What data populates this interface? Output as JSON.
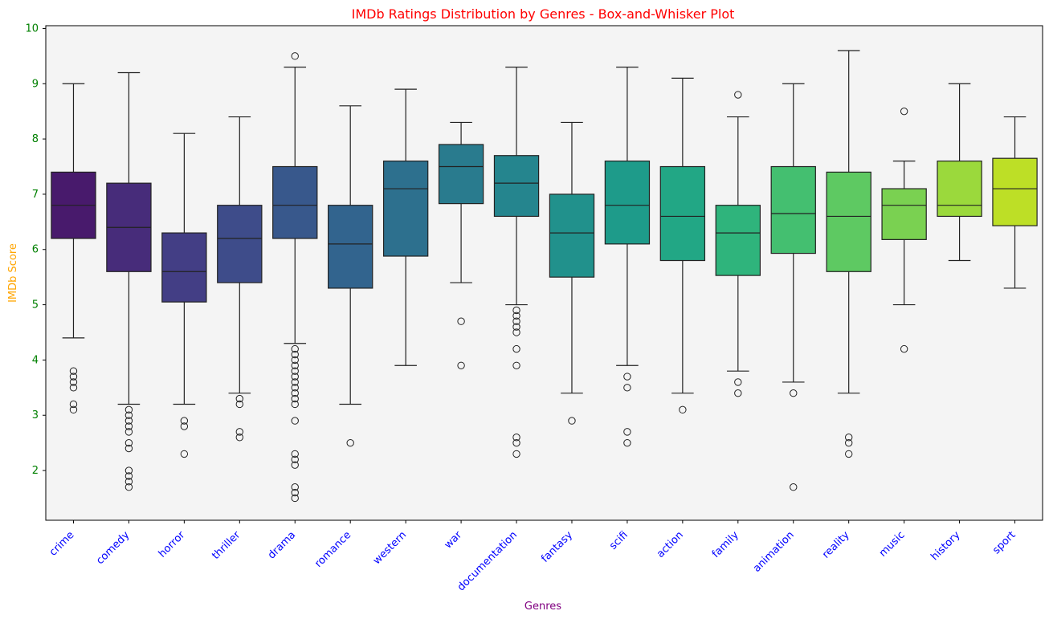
{
  "chart_data": {
    "type": "boxplot",
    "title": "IMDb Ratings Distribution by Genres - Box-and-Whisker Plot",
    "xlabel": "Genres",
    "ylabel": "IMDb Score",
    "ylim": [
      1.1,
      10.05
    ],
    "yticks": [
      2,
      3,
      4,
      5,
      6,
      7,
      8,
      9,
      10
    ],
    "grid": false,
    "colors": {
      "title": "#ff0000",
      "xlabel": "#800080",
      "ylabel": "#ffa500",
      "xticks": "#0000ff",
      "yticks": "#008000",
      "plot_bg": "#f4f4f4",
      "palette": "viridis"
    },
    "categories": [
      "crime",
      "comedy",
      "horror",
      "thriller",
      "drama",
      "romance",
      "western",
      "war",
      "documentation",
      "fantasy",
      "scifi",
      "action",
      "family",
      "animation",
      "reality",
      "music",
      "history",
      "sport"
    ],
    "boxes": [
      {
        "genre": "crime",
        "color": "#481a6c",
        "whislo": 4.4,
        "q1": 6.2,
        "med": 6.8,
        "q3": 7.4,
        "whishi": 9.0,
        "fliers": [
          3.1,
          3.2,
          3.5,
          3.6,
          3.7,
          3.8
        ]
      },
      {
        "genre": "comedy",
        "color": "#472c7a",
        "whislo": 3.2,
        "q1": 5.6,
        "med": 6.4,
        "q3": 7.2,
        "whishi": 9.2,
        "fliers": [
          1.7,
          1.8,
          1.9,
          2.0,
          2.4,
          2.5,
          2.7,
          2.8,
          2.9,
          3.0,
          3.1
        ]
      },
      {
        "genre": "horror",
        "color": "#433e85",
        "whislo": 3.2,
        "q1": 5.05,
        "med": 5.6,
        "q3": 6.3,
        "whishi": 8.1,
        "fliers": [
          2.3,
          2.8,
          2.9
        ]
      },
      {
        "genre": "thriller",
        "color": "#3e4c8a",
        "whislo": 3.4,
        "q1": 5.4,
        "med": 6.2,
        "q3": 6.8,
        "whishi": 8.4,
        "fliers": [
          2.6,
          2.7,
          3.2,
          3.3
        ]
      },
      {
        "genre": "drama",
        "color": "#38588c",
        "whislo": 4.3,
        "q1": 6.2,
        "med": 6.8,
        "q3": 7.5,
        "whishi": 9.3,
        "fliers": [
          1.5,
          1.6,
          1.7,
          2.1,
          2.2,
          2.3,
          2.9,
          3.2,
          3.3,
          3.4,
          3.5,
          3.6,
          3.7,
          3.8,
          3.9,
          4.0,
          4.1,
          4.2,
          9.5
        ]
      },
      {
        "genre": "romance",
        "color": "#32648e",
        "whislo": 3.2,
        "q1": 5.3,
        "med": 6.1,
        "q3": 6.8,
        "whishi": 8.6,
        "fliers": [
          2.5
        ]
      },
      {
        "genre": "western",
        "color": "#2d708e",
        "whislo": 3.9,
        "q1": 5.88,
        "med": 7.1,
        "q3": 7.6,
        "whishi": 8.9,
        "fliers": []
      },
      {
        "genre": "war",
        "color": "#297b8e",
        "whislo": 5.4,
        "q1": 6.83,
        "med": 7.5,
        "q3": 7.9,
        "whishi": 8.3,
        "fliers": [
          3.9,
          4.7
        ]
      },
      {
        "genre": "documentation",
        "color": "#25858e",
        "whislo": 5.0,
        "q1": 6.6,
        "med": 7.2,
        "q3": 7.7,
        "whishi": 9.3,
        "fliers": [
          2.3,
          2.5,
          2.6,
          3.9,
          4.2,
          4.5,
          4.6,
          4.7,
          4.8,
          4.9
        ]
      },
      {
        "genre": "fantasy",
        "color": "#21918c",
        "whislo": 3.4,
        "q1": 5.5,
        "med": 6.3,
        "q3": 7.0,
        "whishi": 8.3,
        "fliers": [
          2.9
        ]
      },
      {
        "genre": "scifi",
        "color": "#1e9b8a",
        "whislo": 3.9,
        "q1": 6.1,
        "med": 6.8,
        "q3": 7.6,
        "whishi": 9.3,
        "fliers": [
          2.5,
          2.7,
          3.5,
          3.7
        ]
      },
      {
        "genre": "action",
        "color": "#22a785",
        "whislo": 3.4,
        "q1": 5.8,
        "med": 6.6,
        "q3": 7.5,
        "whishi": 9.1,
        "fliers": [
          3.1
        ]
      },
      {
        "genre": "family",
        "color": "#2fb47c",
        "whislo": 3.8,
        "q1": 5.53,
        "med": 6.3,
        "q3": 6.8,
        "whishi": 8.4,
        "fliers": [
          3.4,
          3.6,
          8.8
        ]
      },
      {
        "genre": "animation",
        "color": "#44bf70",
        "whislo": 3.6,
        "q1": 5.93,
        "med": 6.65,
        "q3": 7.5,
        "whishi": 9.0,
        "fliers": [
          1.7,
          3.4
        ]
      },
      {
        "genre": "reality",
        "color": "#5ec962",
        "whislo": 3.4,
        "q1": 5.6,
        "med": 6.6,
        "q3": 7.4,
        "whishi": 9.6,
        "fliers": [
          2.3,
          2.5,
          2.6
        ]
      },
      {
        "genre": "music",
        "color": "#7ad151",
        "whislo": 5.0,
        "q1": 6.18,
        "med": 6.8,
        "q3": 7.1,
        "whishi": 7.6,
        "fliers": [
          4.2,
          8.5
        ]
      },
      {
        "genre": "history",
        "color": "#9bd93c",
        "whislo": 5.8,
        "q1": 6.6,
        "med": 6.8,
        "q3": 7.6,
        "whishi": 9.0,
        "fliers": []
      },
      {
        "genre": "sport",
        "color": "#bddf26",
        "whislo": 5.3,
        "q1": 6.43,
        "med": 7.1,
        "q3": 7.65,
        "whishi": 8.4,
        "fliers": []
      }
    ]
  }
}
